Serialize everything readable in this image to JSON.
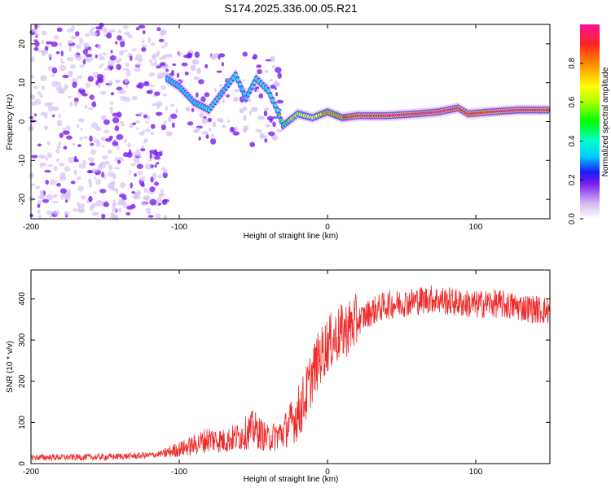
{
  "title": "S174.2025.336.00.05.R21",
  "chart_data": [
    {
      "type": "heatmap",
      "name": "spectrogram",
      "xlabel": "Height of straight line (km)",
      "ylabel": "Frequency (Hz)",
      "xlim": [
        -200,
        150
      ],
      "ylim": [
        -25,
        25
      ],
      "xticks": [
        -200,
        -100,
        0,
        100
      ],
      "yticks": [
        -20,
        -10,
        0,
        10,
        20
      ],
      "colorbar": {
        "label": "Normalized spectral amplitude",
        "range": [
          0.0,
          1.0
        ],
        "ticks": [
          0.0,
          0.2,
          0.4,
          0.6,
          0.8
        ],
        "tick_labels": [
          "0.0",
          "0.2",
          "0.4",
          "0.6",
          "0.8"
        ]
      },
      "ridge": [
        {
          "x": -108,
          "freq": 11,
          "amp": 0.25
        },
        {
          "x": -100,
          "freq": 9,
          "amp": 0.3
        },
        {
          "x": -90,
          "freq": 5,
          "amp": 0.3
        },
        {
          "x": -80,
          "freq": 3,
          "amp": 0.35
        },
        {
          "x": -70,
          "freq": 8,
          "amp": 0.3
        },
        {
          "x": -62,
          "freq": 12,
          "amp": 0.35
        },
        {
          "x": -55,
          "freq": 6,
          "amp": 0.3
        },
        {
          "x": -48,
          "freq": 11,
          "amp": 0.35
        },
        {
          "x": -40,
          "freq": 8,
          "amp": 0.4
        },
        {
          "x": -34,
          "freq": 3,
          "amp": 0.4
        },
        {
          "x": -30,
          "freq": -1,
          "amp": 0.45
        },
        {
          "x": -20,
          "freq": 2,
          "amp": 0.6
        },
        {
          "x": -10,
          "freq": 1,
          "amp": 0.65
        },
        {
          "x": 0,
          "freq": 2.5,
          "amp": 0.7
        },
        {
          "x": 10,
          "freq": 1,
          "amp": 0.8
        },
        {
          "x": 20,
          "freq": 1.5,
          "amp": 0.9
        },
        {
          "x": 40,
          "freq": 1.5,
          "amp": 0.95
        },
        {
          "x": 60,
          "freq": 2,
          "amp": 0.9
        },
        {
          "x": 75,
          "freq": 2.5,
          "amp": 0.95
        },
        {
          "x": 88,
          "freq": 3.5,
          "amp": 0.9
        },
        {
          "x": 95,
          "freq": 2,
          "amp": 0.85
        },
        {
          "x": 110,
          "freq": 2.5,
          "amp": 0.9
        },
        {
          "x": 130,
          "freq": 3,
          "amp": 0.95
        },
        {
          "x": 150,
          "freq": 3,
          "amp": 0.95
        }
      ]
    },
    {
      "type": "line",
      "name": "snr",
      "xlabel": "Height of straight line (km)",
      "ylabel": "SNR (10 * v/v)",
      "xlim": [
        -200,
        150
      ],
      "ylim": [
        0,
        470
      ],
      "xticks": [
        -200,
        -100,
        0,
        100
      ],
      "yticks": [
        0,
        100,
        200,
        300,
        400
      ],
      "color": "#ee2a2a",
      "series": [
        {
          "name": "SNR",
          "x": [
            -200,
            -150,
            -120,
            -110,
            -100,
            -90,
            -80,
            -70,
            -60,
            -50,
            -40,
            -30,
            -20,
            -15,
            -10,
            -5,
            0,
            10,
            20,
            30,
            40,
            50,
            60,
            70,
            80,
            90,
            100,
            110,
            120,
            130,
            140,
            150
          ],
          "values": [
            15,
            16,
            20,
            25,
            35,
            45,
            60,
            55,
            65,
            85,
            60,
            75,
            120,
            160,
            220,
            260,
            290,
            320,
            345,
            370,
            385,
            390,
            395,
            400,
            395,
            390,
            385,
            390,
            385,
            380,
            375,
            370
          ]
        }
      ]
    }
  ]
}
